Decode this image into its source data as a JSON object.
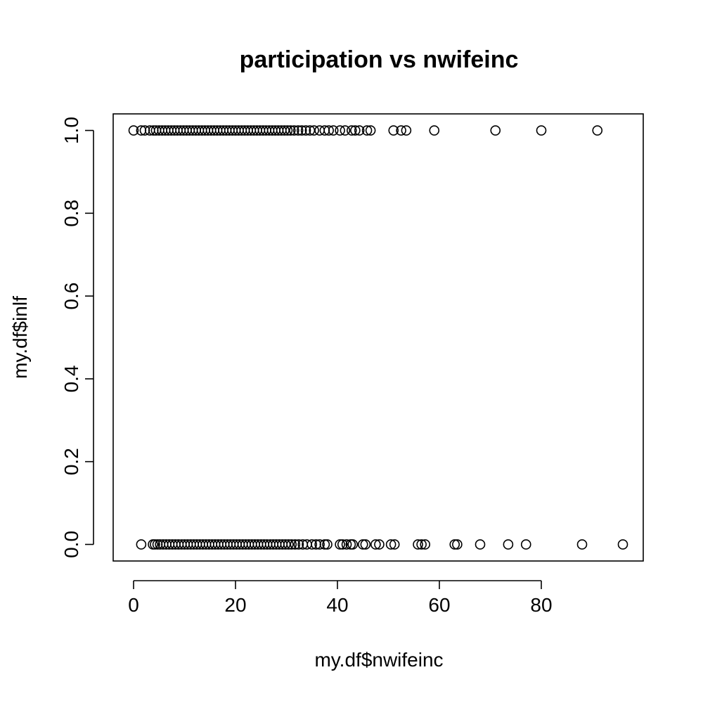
{
  "chart_data": {
    "type": "scatter",
    "title": "participation vs nwifeinc",
    "xlabel": "my.df$nwifeinc",
    "ylabel": "my.df$inlf",
    "xlim": [
      -4,
      100
    ],
    "ylim": [
      -0.04,
      1.04
    ],
    "x_ticks": [
      0,
      20,
      40,
      60,
      80
    ],
    "x_tick_labels": [
      "0",
      "20",
      "40",
      "60",
      "80"
    ],
    "y_ticks": [
      0.0,
      0.2,
      0.4,
      0.6,
      0.8,
      1.0
    ],
    "y_tick_labels": [
      "0.0",
      "0.2",
      "0.4",
      "0.6",
      "0.8",
      "1.0"
    ],
    "grid": false,
    "legend": "none",
    "series": [
      {
        "y": 1,
        "x": [
          0.0,
          1.5,
          2.2,
          3.2,
          3.9,
          4.4,
          5.0,
          5.6,
          6.2,
          6.8,
          7.4,
          8.0,
          8.6,
          9.2,
          9.8,
          10.4,
          11.0,
          11.6,
          12.2,
          12.8,
          13.4,
          14.0,
          14.6,
          15.2,
          15.8,
          16.4,
          17.0,
          17.6,
          18.2,
          18.8,
          19.4,
          20.0,
          20.6,
          21.2,
          21.8,
          22.4,
          23.0,
          23.6,
          24.2,
          24.8,
          25.4,
          26.0,
          26.6,
          27.2,
          27.8,
          28.4,
          29.0,
          29.6,
          30.2,
          30.8,
          31.5,
          32.3,
          33.0,
          33.8,
          34.6,
          35.4,
          36.5,
          37.5,
          38.3,
          39.2,
          40.5,
          41.5,
          42.8,
          43.5,
          44.3,
          45.8,
          46.5,
          51.0,
          52.5,
          53.5,
          59.0,
          71.0,
          80.0,
          91.0
        ]
      },
      {
        "y": 0,
        "x": [
          1.5,
          3.8,
          4.2,
          4.7,
          5.2,
          5.8,
          6.4,
          7.0,
          7.6,
          8.2,
          8.8,
          9.4,
          10.0,
          10.6,
          11.2,
          11.8,
          12.4,
          13.0,
          13.6,
          14.2,
          14.8,
          15.4,
          16.0,
          16.6,
          17.2,
          17.8,
          18.4,
          19.0,
          19.6,
          20.2,
          20.8,
          21.4,
          22.0,
          22.6,
          23.2,
          23.8,
          24.4,
          25.0,
          25.6,
          26.2,
          26.8,
          27.4,
          28.0,
          28.6,
          29.2,
          29.8,
          30.4,
          31.0,
          31.7,
          32.4,
          33.2,
          34.0,
          35.0,
          35.8,
          36.5,
          37.5,
          38.0,
          40.5,
          41.0,
          41.8,
          42.6,
          43.0,
          45.0,
          45.5,
          47.5,
          48.2,
          50.5,
          51.2,
          55.8,
          56.5,
          57.2,
          63.0,
          63.5,
          68.0,
          73.5,
          77.0,
          88.0,
          96.0
        ]
      }
    ]
  }
}
